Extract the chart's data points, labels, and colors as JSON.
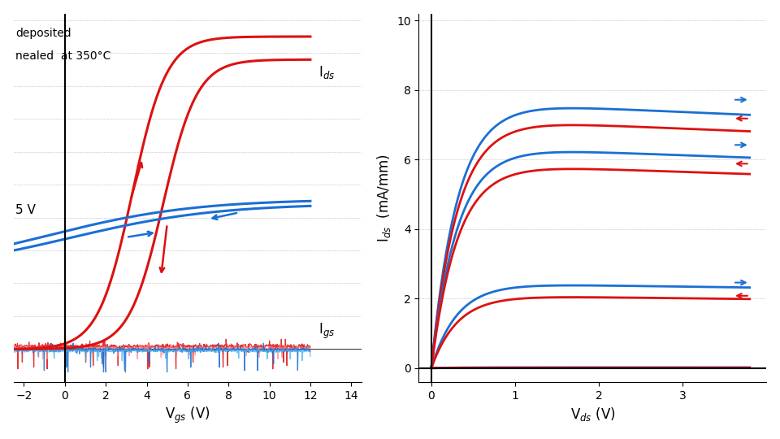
{
  "left_plot": {
    "xlim": [
      -2.5,
      14.5
    ],
    "xticks": [
      -2,
      0,
      2,
      4,
      6,
      8,
      10,
      12,
      14
    ],
    "xlabel": "V$_{gs}$ (V)",
    "ids_label": "I$_{ds}$",
    "igs_label": "I$_{gs}$",
    "blue_color": "#1A6FD4",
    "red_color": "#DD1111",
    "pink_color": "#FF8888",
    "cyan_color": "#44AAEE",
    "background": "#FFFFFF",
    "grid_color": "#AAAAAA",
    "annotation_text1": "deposited",
    "annotation_text2": "nealed  at 350°C",
    "annotation_vt": "5 V",
    "ylim_lo": -1.0,
    "ylim_hi": 10.2
  },
  "right_plot": {
    "xlim": [
      -0.15,
      4.0
    ],
    "ylim": [
      -0.4,
      10.2
    ],
    "xticks": [
      0,
      1,
      2,
      3
    ],
    "yticks": [
      0,
      2,
      4,
      6,
      8,
      10
    ],
    "xlabel": "V$_{ds}$ (V)",
    "ylabel": "I$_{ds}$  (mA/mm)",
    "blue_color": "#1A6FD4",
    "red_color": "#DD1111",
    "background": "#FFFFFF",
    "grid_color": "#AAAAAA",
    "iv_configs": [
      {
        "blue_sat": 7.7,
        "red_sat": 7.2
      },
      {
        "blue_sat": 6.4,
        "red_sat": 5.9
      },
      {
        "blue_sat": 2.45,
        "red_sat": 2.1
      },
      {
        "blue_sat": 0.02,
        "red_sat": 0.01
      }
    ]
  }
}
